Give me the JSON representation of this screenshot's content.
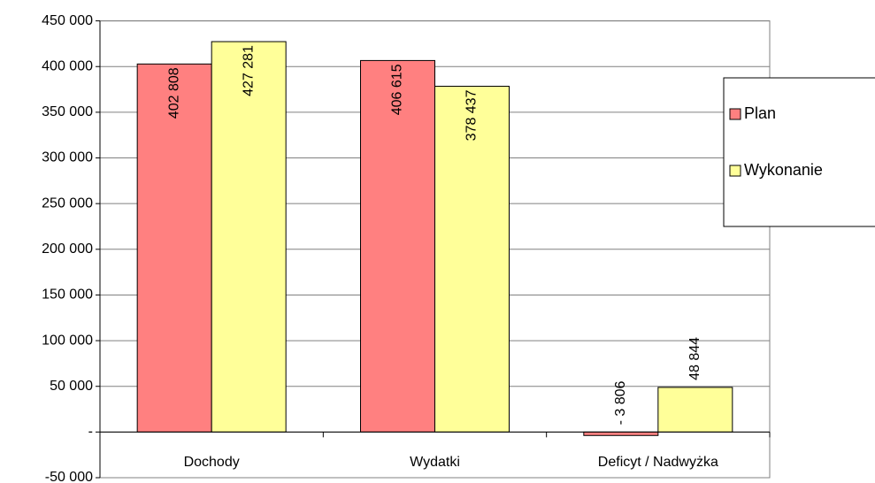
{
  "chart_data": {
    "type": "bar",
    "categories": [
      "Dochody",
      "Wydatki",
      "Deficyt / Nadwyżka"
    ],
    "series": [
      {
        "name": "Plan",
        "color": "#ff8080",
        "values": [
          402808,
          406615,
          -3806
        ],
        "value_labels": [
          "402 808",
          "406 615",
          "- 3 806"
        ]
      },
      {
        "name": "Wykonanie",
        "color": "#ffff99",
        "values": [
          427281,
          378437,
          48844
        ],
        "value_labels": [
          "427 281",
          "378 437",
          "48 844"
        ]
      }
    ],
    "ylim": [
      -50000,
      450000
    ],
    "yticks": [
      {
        "value": -50000,
        "label": "-50 000"
      },
      {
        "value": 0,
        "label": "-"
      },
      {
        "value": 50000,
        "label": "50 000"
      },
      {
        "value": 100000,
        "label": "100 000"
      },
      {
        "value": 150000,
        "label": "150 000"
      },
      {
        "value": 200000,
        "label": "200 000"
      },
      {
        "value": 250000,
        "label": "250 000"
      },
      {
        "value": 300000,
        "label": "300 000"
      },
      {
        "value": 350000,
        "label": "350 000"
      },
      {
        "value": 400000,
        "label": "400 000"
      },
      {
        "value": 450000,
        "label": "450 000"
      }
    ],
    "grid": true,
    "legend": "right"
  }
}
